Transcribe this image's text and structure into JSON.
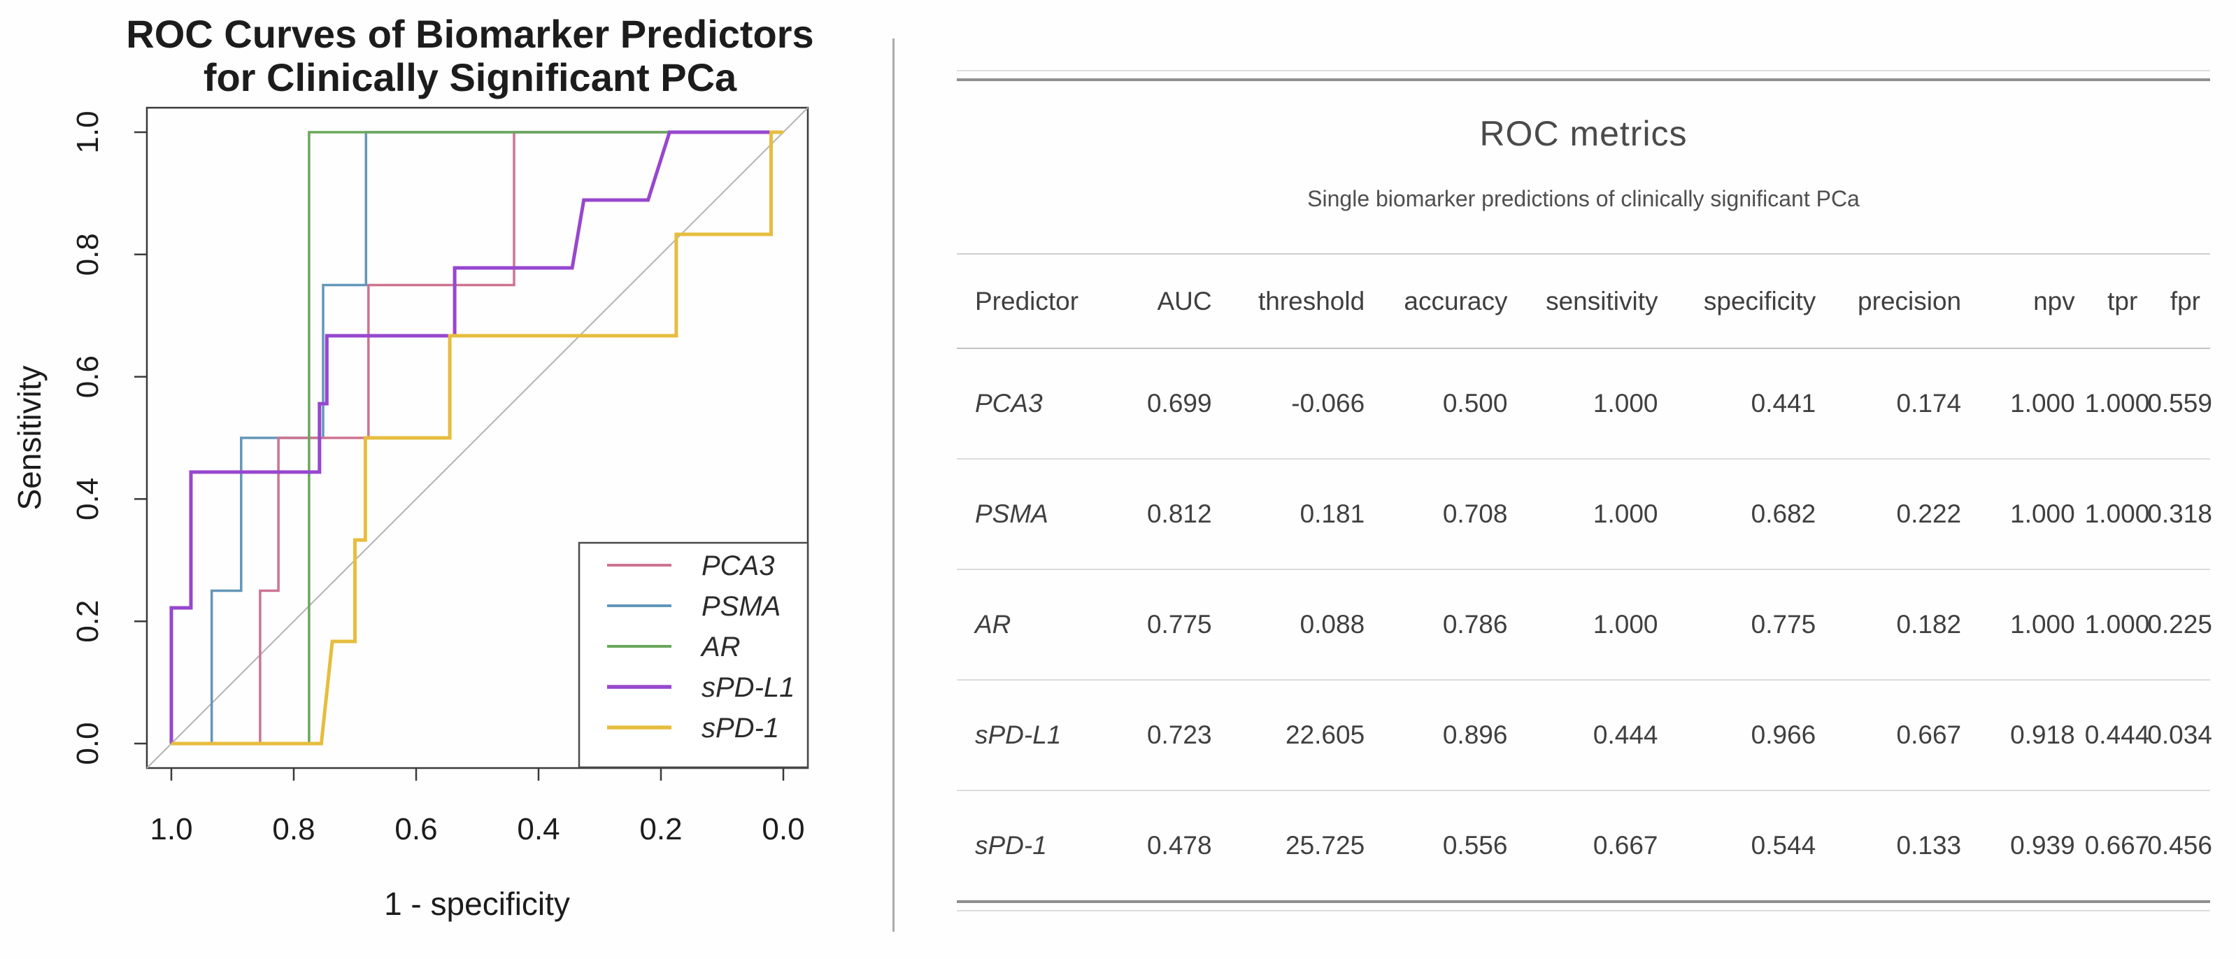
{
  "chart_data": [
    {
      "type": "line",
      "title": "ROC Curves of Biomarker Predictors for Clinically Significant PCa",
      "title_lines": [
        "ROC Curves of Biomarker Predictors",
        "for Clinically Significant PCa"
      ],
      "xlabel": "1 - specificity",
      "ylabel": "Sensitivity",
      "x_axis": {
        "range": [
          1.0,
          0.0
        ],
        "reversed": true,
        "tick_labels": [
          "1.0",
          "0.8",
          "0.6",
          "0.4",
          "0.2",
          "0.0"
        ],
        "tick_values": [
          1.0,
          0.8,
          0.6,
          0.4,
          0.2,
          0.0
        ]
      },
      "y_axis": {
        "range": [
          0.0,
          1.0
        ],
        "tick_labels": [
          "0.0",
          "0.2",
          "0.4",
          "0.6",
          "0.8",
          "1.0"
        ],
        "tick_values": [
          0.0,
          0.2,
          0.4,
          0.6,
          0.8,
          1.0
        ]
      },
      "grid": false,
      "diagonal_reference": true,
      "legend_position": "bottom-right",
      "series": [
        {
          "name": "PSMA",
          "color": "#6397b9",
          "width": 3.5,
          "points": [
            [
              1,
              0
            ],
            [
              0.934,
              0
            ],
            [
              0.934,
              0.25
            ],
            [
              0.886,
              0.25
            ],
            [
              0.886,
              0.5
            ],
            [
              0.752,
              0.5
            ],
            [
              0.752,
              0.75
            ],
            [
              0.682,
              0.75
            ],
            [
              0.682,
              1
            ],
            [
              0,
              1
            ]
          ]
        },
        {
          "name": "PCA3",
          "color": "#cd7490",
          "width": 3.5,
          "points": [
            [
              1,
              0
            ],
            [
              0.855,
              0
            ],
            [
              0.855,
              0.25
            ],
            [
              0.825,
              0.25
            ],
            [
              0.825,
              0.5
            ],
            [
              0.678,
              0.5
            ],
            [
              0.678,
              0.75
            ],
            [
              0.44,
              0.75
            ],
            [
              0.44,
              1
            ],
            [
              0,
              1
            ]
          ]
        },
        {
          "name": "AR",
          "color": "#69a85b",
          "width": 3.5,
          "points": [
            [
              1,
              0
            ],
            [
              0.775,
              0
            ],
            [
              0.775,
              1
            ],
            [
              0,
              1
            ]
          ]
        },
        {
          "name": "sPD-L1",
          "color": "#9747cf",
          "width": 5,
          "points": [
            [
              1,
              0
            ],
            [
              1,
              0.222
            ],
            [
              0.968,
              0.222
            ],
            [
              0.968,
              0.444
            ],
            [
              0.758,
              0.444
            ],
            [
              0.758,
              0.556
            ],
            [
              0.746,
              0.556
            ],
            [
              0.746,
              0.667
            ],
            [
              0.537,
              0.667
            ],
            [
              0.537,
              0.778
            ],
            [
              0.345,
              0.778
            ],
            [
              0.326,
              0.889
            ],
            [
              0.221,
              0.889
            ],
            [
              0.186,
              1
            ],
            [
              0,
              1
            ]
          ]
        },
        {
          "name": "sPD-1",
          "color": "#e6bd3e",
          "width": 5,
          "points": [
            [
              1,
              0
            ],
            [
              0.755,
              0
            ],
            [
              0.737,
              0.167
            ],
            [
              0.7,
              0.167
            ],
            [
              0.7,
              0.333
            ],
            [
              0.683,
              0.333
            ],
            [
              0.683,
              0.5
            ],
            [
              0.545,
              0.5
            ],
            [
              0.545,
              0.667
            ],
            [
              0.175,
              0.667
            ],
            [
              0.175,
              0.833
            ],
            [
              0.02,
              0.833
            ],
            [
              0.02,
              1
            ],
            [
              0,
              1
            ]
          ]
        }
      ],
      "legend_order": [
        "PCA3",
        "PSMA",
        "AR",
        "sPD-L1",
        "sPD-1"
      ]
    },
    {
      "type": "table",
      "title": "ROC metrics",
      "subtitle": "Single biomarker predictions of clinically significant PCa",
      "columns": [
        "Predictor",
        "AUC",
        "threshold",
        "accuracy",
        "sensitivity",
        "specificity",
        "precision",
        "npv",
        "tpr",
        "fpr"
      ],
      "rows": [
        [
          "PCA3",
          "0.699",
          "-0.066",
          "0.500",
          "1.000",
          "0.441",
          "0.174",
          "1.000",
          "1.000",
          "0.559"
        ],
        [
          "PSMA",
          "0.812",
          "0.181",
          "0.708",
          "1.000",
          "0.682",
          "0.222",
          "1.000",
          "1.000",
          "0.318"
        ],
        [
          "AR",
          "0.775",
          "0.088",
          "0.786",
          "1.000",
          "0.775",
          "0.182",
          "1.000",
          "1.000",
          "0.225"
        ],
        [
          "sPD-L1",
          "0.723",
          "22.605",
          "0.896",
          "0.444",
          "0.966",
          "0.667",
          "0.918",
          "0.444",
          "0.034"
        ],
        [
          "sPD-1",
          "0.478",
          "25.725",
          "0.556",
          "0.667",
          "0.544",
          "0.133",
          "0.939",
          "0.667",
          "0.456"
        ]
      ]
    }
  ],
  "colors": {
    "axis_box": "#3a3a3a",
    "diagonal": "#b3b3b3",
    "plot_text": "#1c1c1c",
    "legend_border": "#4a4a4a",
    "divider": "#ababab",
    "rule_strong": "#8f8f8f",
    "rule_light": "#dedede",
    "table_text": "#3f3f3f"
  }
}
